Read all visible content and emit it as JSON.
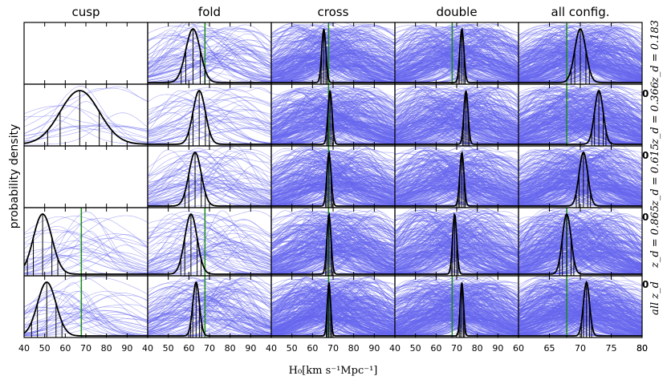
{
  "chart_data": {
    "type": "line",
    "ylabel": "probability density",
    "xlabel": "H₀[km s⁻¹Mpc⁻¹]",
    "columns": [
      "cusp",
      "fold",
      "cross",
      "double",
      "all config."
    ],
    "rows": [
      "z_d = 0.183",
      "z_d = 0.366",
      "z_d = 0.615",
      "z_d = 0.865",
      "all z_d"
    ],
    "edge_zero_label": "0",
    "xlim_per_col": [
      [
        40,
        100
      ],
      [
        40,
        100
      ],
      [
        40,
        100
      ],
      [
        40,
        100
      ],
      [
        60,
        80
      ]
    ],
    "xticks_per_col": [
      [
        40,
        50,
        60,
        70,
        80,
        90
      ],
      [
        40,
        50,
        60,
        70,
        80,
        90
      ],
      [
        40,
        50,
        60,
        70,
        80,
        90
      ],
      [
        40,
        50,
        60,
        70,
        80,
        90
      ],
      [
        60,
        65,
        70,
        75,
        80
      ]
    ],
    "reference_line_x": 67.8,
    "reference_color": "#1a8a1a",
    "individual_color": "#6666ee",
    "combined_color": "#000000",
    "panels": [
      [
        {
          "n": 0,
          "mu": null,
          "sd": null,
          "show_ref": false
        },
        {
          "n": 70,
          "mu": 62,
          "sd": 3.5,
          "show_ref": true
        },
        {
          "n": 260,
          "mu": 65.5,
          "sd": 1.0,
          "show_ref": true
        },
        {
          "n": 260,
          "mu": 72.5,
          "sd": 1.0,
          "show_ref": true
        },
        {
          "n": 300,
          "mu": 70.0,
          "sd": 0.9,
          "show_ref": true
        }
      ],
      [
        {
          "n": 14,
          "mu": 67,
          "sd": 9.5,
          "show_ref": false
        },
        {
          "n": 40,
          "mu": 65,
          "sd": 3.0,
          "show_ref": false
        },
        {
          "n": 260,
          "mu": 68.5,
          "sd": 1.0,
          "show_ref": true
        },
        {
          "n": 260,
          "mu": 74.5,
          "sd": 1.0,
          "show_ref": false
        },
        {
          "n": 300,
          "mu": 73.0,
          "sd": 0.7,
          "show_ref": true
        }
      ],
      [
        {
          "n": 0,
          "mu": null,
          "sd": null,
          "show_ref": false
        },
        {
          "n": 60,
          "mu": 63,
          "sd": 3.0,
          "show_ref": false
        },
        {
          "n": 260,
          "mu": 68.0,
          "sd": 1.0,
          "show_ref": true
        },
        {
          "n": 260,
          "mu": 72.5,
          "sd": 1.0,
          "show_ref": false
        },
        {
          "n": 300,
          "mu": 70.5,
          "sd": 0.7,
          "show_ref": false
        }
      ],
      [
        {
          "n": 28,
          "mu": 49,
          "sd": 4.5,
          "show_ref": true
        },
        {
          "n": 60,
          "mu": 61,
          "sd": 3.0,
          "show_ref": true
        },
        {
          "n": 260,
          "mu": 68.0,
          "sd": 1.0,
          "show_ref": true
        },
        {
          "n": 260,
          "mu": 69.0,
          "sd": 1.0,
          "show_ref": false
        },
        {
          "n": 300,
          "mu": 67.8,
          "sd": 0.7,
          "show_ref": true
        }
      ],
      [
        {
          "n": 35,
          "mu": 51,
          "sd": 4.5,
          "show_ref": true
        },
        {
          "n": 110,
          "mu": 63.5,
          "sd": 1.6,
          "show_ref": true
        },
        {
          "n": 320,
          "mu": 68.0,
          "sd": 0.8,
          "show_ref": true
        },
        {
          "n": 320,
          "mu": 72.5,
          "sd": 0.8,
          "show_ref": true
        },
        {
          "n": 350,
          "mu": 71.0,
          "sd": 0.5,
          "show_ref": true
        }
      ]
    ]
  }
}
